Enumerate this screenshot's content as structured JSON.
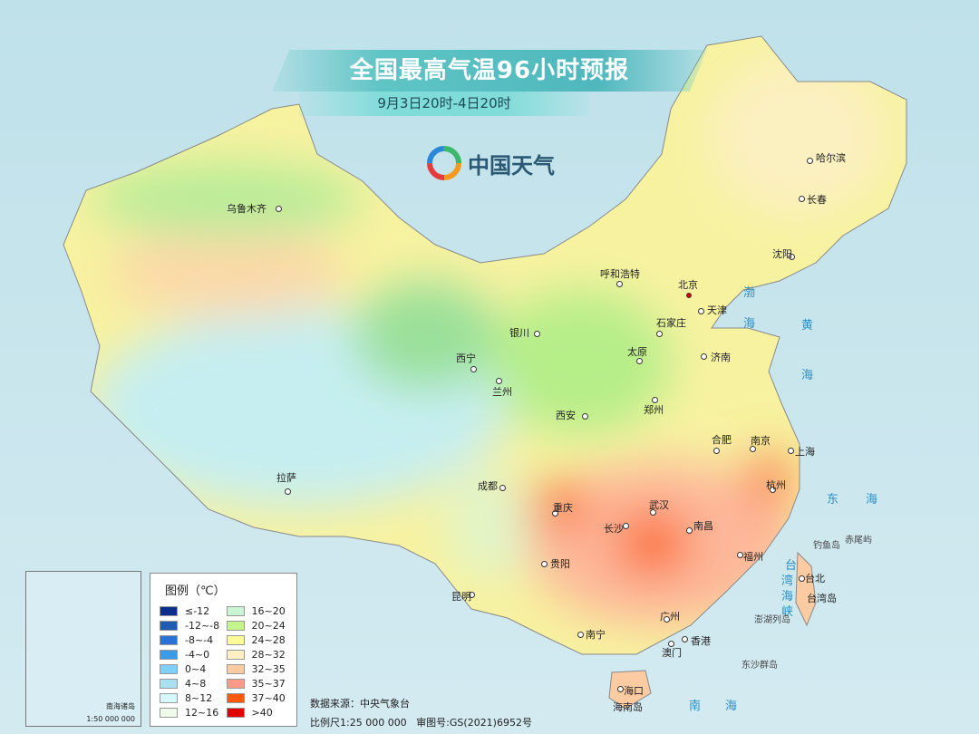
{
  "title": "全国最高气温96小时预报",
  "subtitle": "9月3日20时-4日20时",
  "logo": {
    "text": "中国天气",
    "icon": "china-weather-swirl-logo"
  },
  "cities": [
    "乌鲁木齐",
    "呼和浩特",
    "北京",
    "天津",
    "沈阳",
    "长春",
    "哈尔滨",
    "石家庄",
    "银川",
    "太原",
    "济南",
    "西宁",
    "兰州",
    "郑州",
    "西安",
    "合肥",
    "南京",
    "上海",
    "拉萨",
    "成都",
    "武汉",
    "重庆",
    "杭州",
    "长沙",
    "南昌",
    "贵阳",
    "福州",
    "台北",
    "昆明",
    "广州",
    "南宁",
    "香港",
    "澳门",
    "海口"
  ],
  "regions": [
    "台湾岛",
    "海南岛"
  ],
  "seas": [
    "渤",
    "海",
    "黄",
    "海",
    "东",
    "海",
    "台",
    "湾",
    "海",
    "峡",
    "南",
    "海"
  ],
  "islands": [
    "钓鱼岛",
    "赤尾屿",
    "澎湖列岛",
    "东沙群岛"
  ],
  "legend": {
    "title": "图例（℃）",
    "items": [
      {
        "label": "≤-12",
        "color": "#0a2f8a"
      },
      {
        "label": "-12~-8",
        "color": "#1f5cb0"
      },
      {
        "label": "-8~-4",
        "color": "#2a72d4"
      },
      {
        "label": "-4~0",
        "color": "#3b9be6"
      },
      {
        "label": "0~4",
        "color": "#7fcff8"
      },
      {
        "label": "4~8",
        "color": "#a8e2f2"
      },
      {
        "label": "8~12",
        "color": "#d4f8fb"
      },
      {
        "label": "12~16",
        "color": "#f0fbec"
      },
      {
        "label": "16~20",
        "color": "#c9f5d4"
      },
      {
        "label": "20~24",
        "color": "#c4f58c"
      },
      {
        "label": "24~28",
        "color": "#fbfb98"
      },
      {
        "label": "28~32",
        "color": "#fdf0c4"
      },
      {
        "label": "32~35",
        "color": "#fdcba2"
      },
      {
        "label": "35~37",
        "color": "#fb9a8a"
      },
      {
        "label": "37~40",
        "color": "#fb5a0a"
      },
      {
        "label": ">40",
        "color": "#e00000"
      }
    ]
  },
  "inset": {
    "title": "南海诸岛",
    "scale": "1:50 000 000"
  },
  "footer": {
    "source": "数据来源：中央气象台",
    "scale": "比例尺1:25 000 000",
    "approval": "审图号:GS(2021)6952号"
  },
  "capital_color": "#e00000"
}
